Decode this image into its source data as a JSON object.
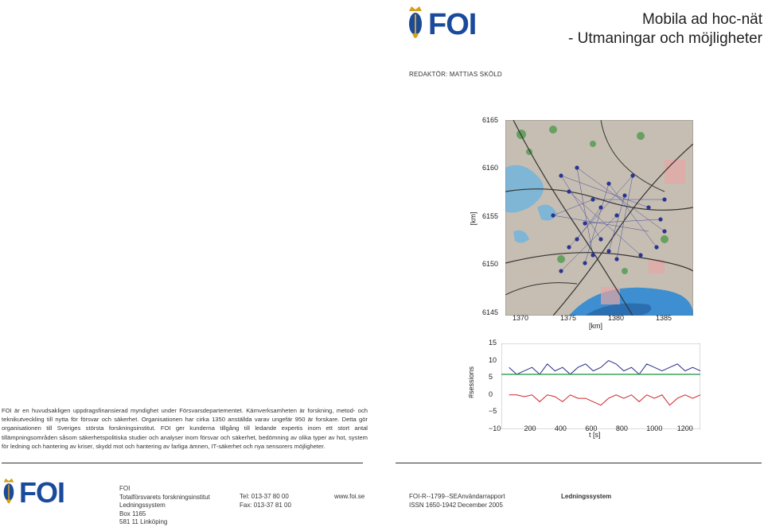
{
  "header": {
    "logo_text": "FOI",
    "title_line1": "Mobila ad hoc-nät",
    "title_line2": "- Utmaningar och möjligheter",
    "editor": "REDAKTÖR: MATTIAS SKÖLD"
  },
  "intro": {
    "text": "FOI är en huvudsakligen uppdragsfinansierad myndighet under Försvarsdepartementet. Kärnverksamheten är forskning, metod- och teknikutveckling till nytta för försvar och säkerhet. Organisationen har cirka 1350 anställda varav ungefär 950 är forskare. Detta gör organisationen till Sveriges största forskningsinstitut. FOI ger kunderna tillgång till ledande expertis inom ett stort antal tillämpningsområden såsom säkerhetspolitiska studier och analyser inom försvar och säkerhet, bedömning av olika typer av hot, system för ledning och hantering av kriser, skydd mot och hantering av farliga ämnen, IT-säkerhet och nya sensorers möjligheter."
  },
  "map": {
    "y_ticks": [
      "6165",
      "6160",
      "6155",
      "6150",
      "6145"
    ],
    "x_ticks": [
      "1370",
      "1375",
      "1380",
      "1385"
    ],
    "ylabel": "[km]",
    "xlabel": "[km]"
  },
  "chart_data": {
    "type": "line",
    "ylabel": "#sessions",
    "xlabel": "t [s]",
    "xlim": [
      0,
      1300
    ],
    "ylim": [
      -10,
      15
    ],
    "x_ticks": [
      "200",
      "400",
      "600",
      "800",
      "1000",
      "1200"
    ],
    "y_ticks": [
      "15",
      "10",
      "5",
      "0",
      "−5",
      "−10"
    ],
    "series": [
      {
        "color": "#2a2f8c",
        "x": [
          50,
          100,
          150,
          200,
          250,
          300,
          350,
          400,
          450,
          500,
          550,
          600,
          650,
          700,
          750,
          800,
          850,
          900,
          950,
          1000,
          1050,
          1100,
          1150,
          1200,
          1250,
          1300
        ],
        "values": [
          8,
          6,
          7,
          8,
          6,
          9,
          7,
          8,
          6,
          8,
          9,
          7,
          8,
          10,
          9,
          7,
          8,
          6,
          9,
          8,
          7,
          8,
          9,
          7,
          8,
          7
        ]
      },
      {
        "color": "#2a9a4a",
        "x": [
          0,
          1300
        ],
        "values": [
          6,
          6
        ]
      },
      {
        "color": "#d0242a",
        "x": [
          50,
          100,
          150,
          200,
          250,
          300,
          350,
          400,
          450,
          500,
          550,
          600,
          650,
          700,
          750,
          800,
          850,
          900,
          950,
          1000,
          1050,
          1100,
          1150,
          1200,
          1250,
          1300
        ],
        "values": [
          0,
          0,
          -0.5,
          0,
          -2,
          0,
          -0.5,
          -2,
          0,
          -1,
          -1,
          -2,
          -3,
          -1,
          0,
          -1,
          0,
          -2,
          0,
          -1,
          0,
          -3,
          -1,
          0,
          -1,
          0
        ]
      }
    ]
  },
  "footer": {
    "logo_text": "FOI",
    "col1": [
      "FOI",
      "Totalförsvarets forskningsinstitut",
      "Ledningssystem",
      "Box 1165",
      "581 11 Linköping"
    ],
    "col2": [
      "Tel: 013-37 80 00",
      "Fax: 013-37 81 00"
    ],
    "web": "www.foi.se",
    "report_id": "FOI-R--1799--SE",
    "issn": "ISSN 1650-1942",
    "report_type": "Användarrapport",
    "date": "December 2005",
    "division": "Ledningssystem"
  }
}
